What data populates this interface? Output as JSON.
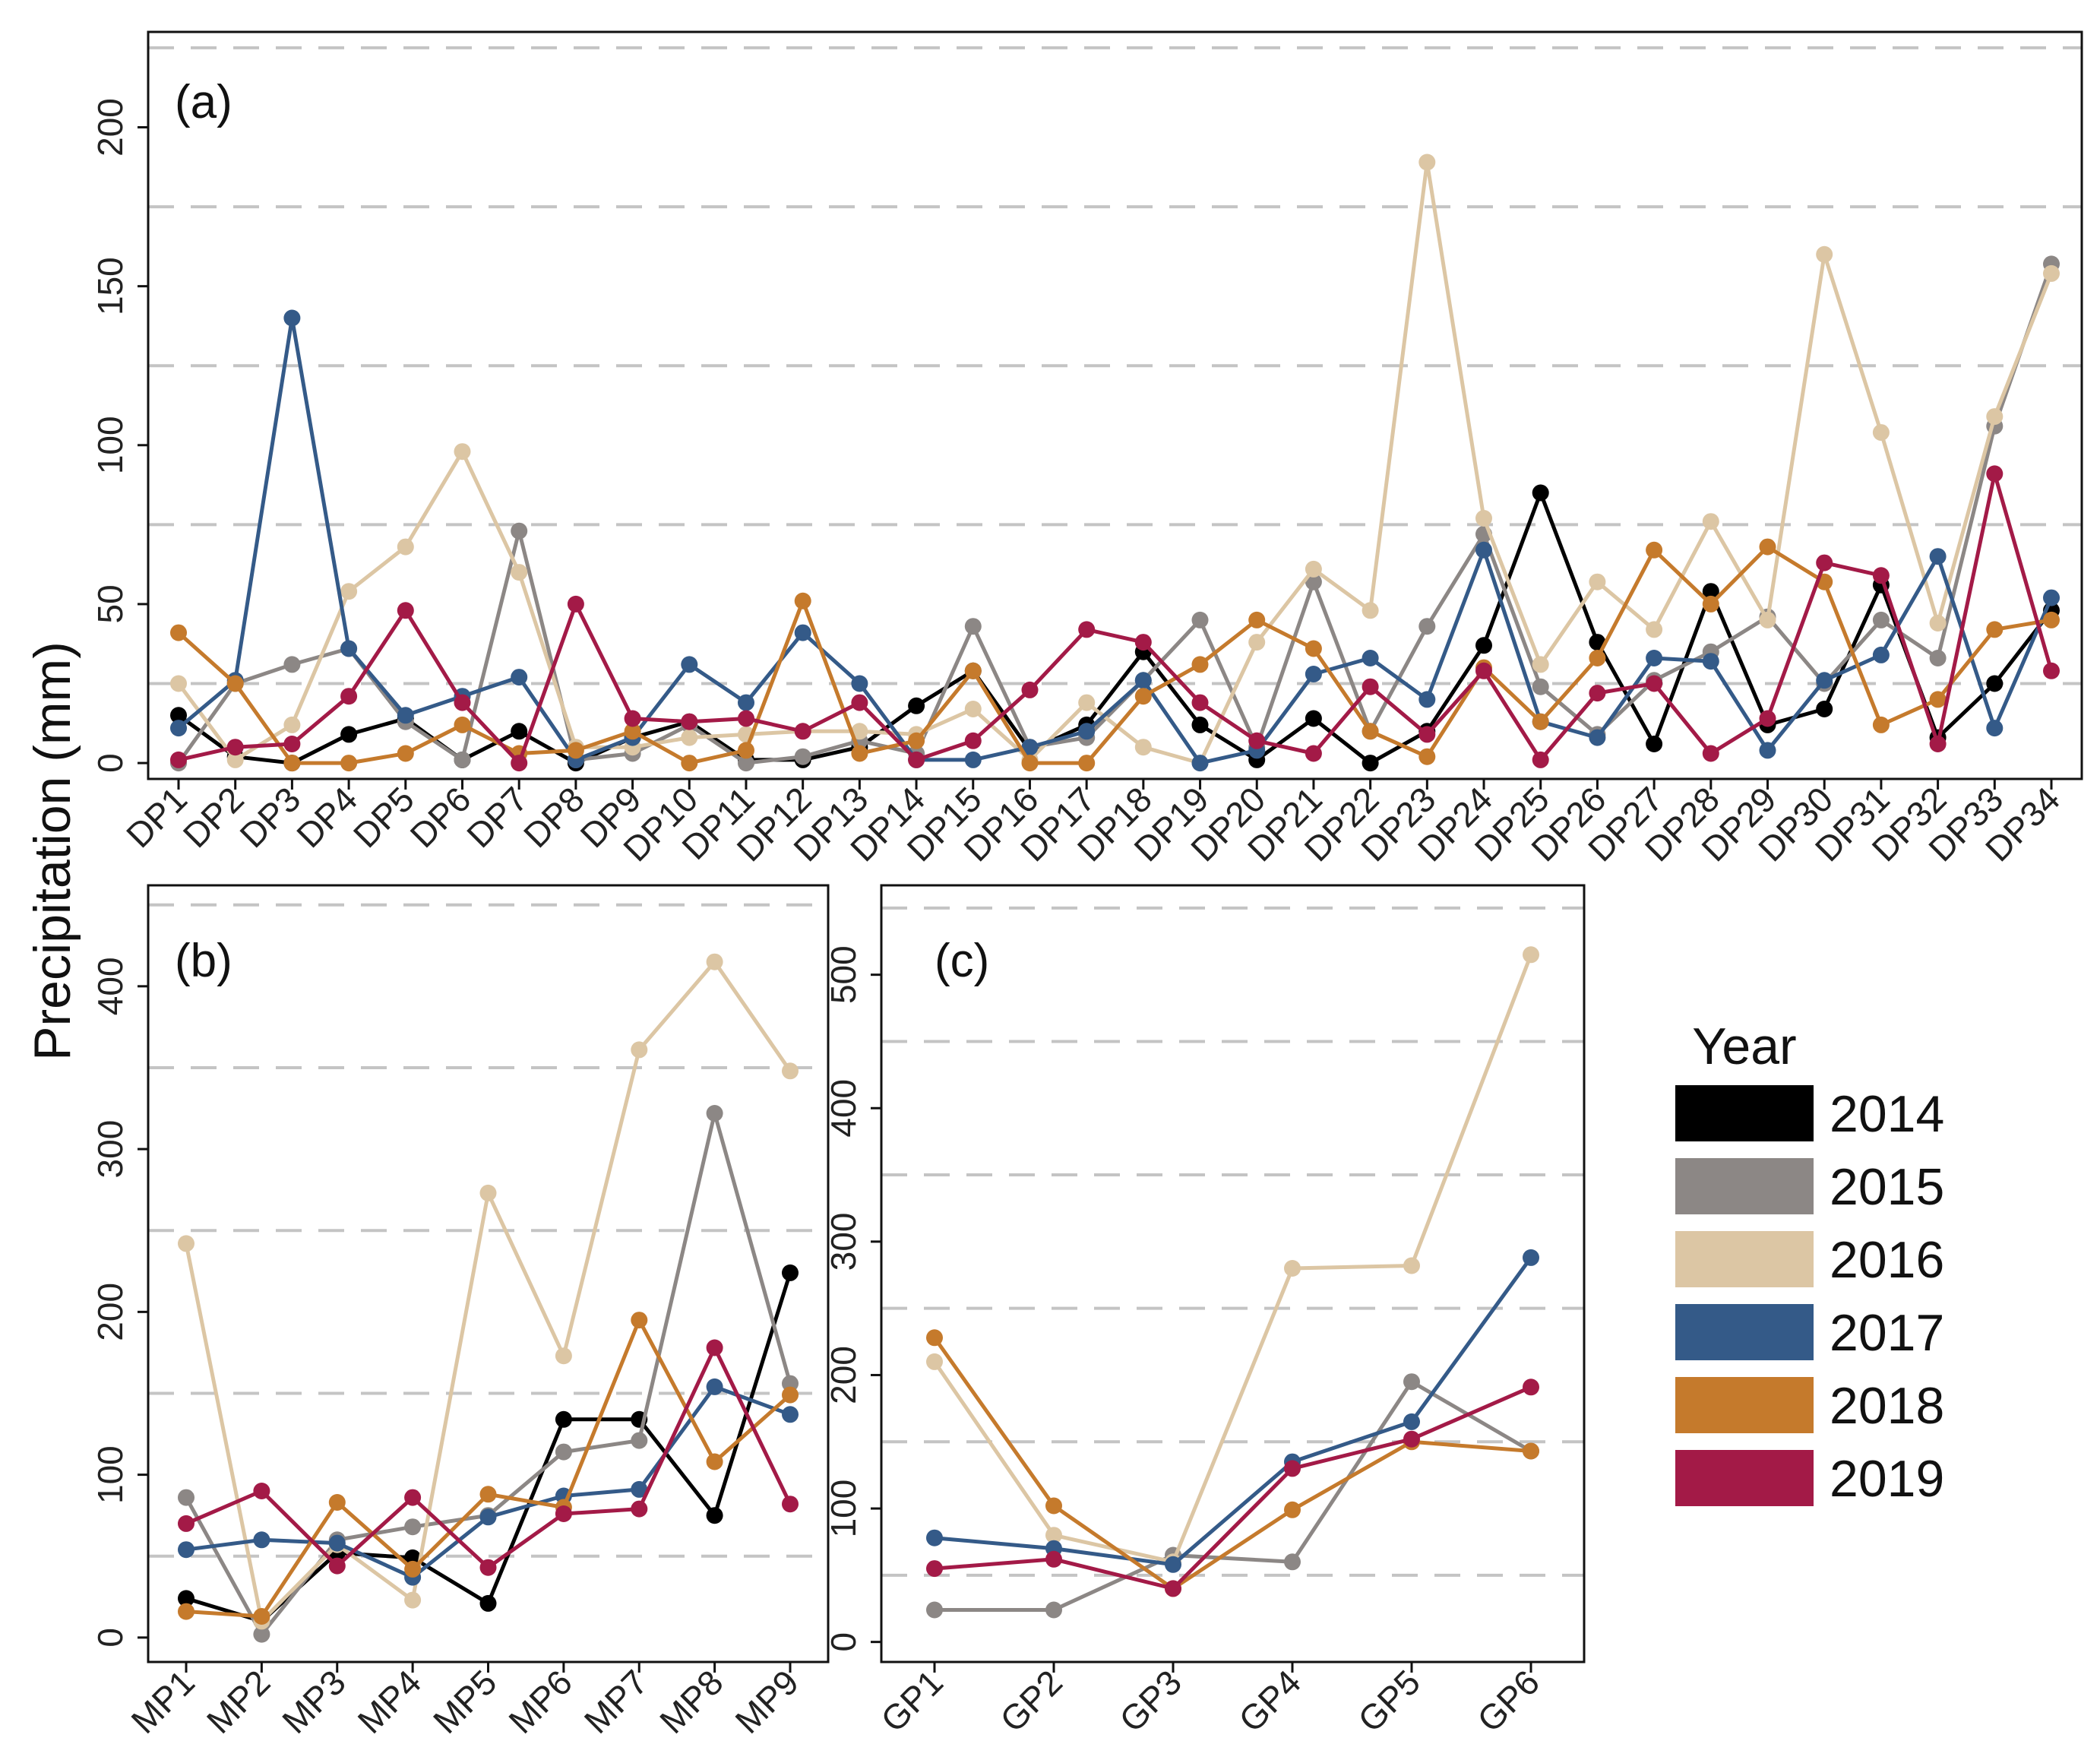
{
  "ylabel": "Precipitation (mm)",
  "legend": {
    "title": "Year",
    "entries": [
      {
        "label": "2014",
        "color": "#000000"
      },
      {
        "label": "2015",
        "color": "#8c8785"
      },
      {
        "label": "2016",
        "color": "#dcc6a4"
      },
      {
        "label": "2017",
        "color": "#345a88"
      },
      {
        "label": "2018",
        "color": "#c57a2c"
      },
      {
        "label": "2019",
        "color": "#a31a47"
      }
    ]
  },
  "chart_data": [
    {
      "type": "line",
      "panel_label": "(a)",
      "categories": [
        "DP1",
        "DP2",
        "DP3",
        "DP4",
        "DP5",
        "DP6",
        "DP7",
        "DP8",
        "DP9",
        "DP10",
        "DP11",
        "DP12",
        "DP13",
        "DP14",
        "DP15",
        "DP16",
        "DP17",
        "DP18",
        "DP19",
        "DP20",
        "DP21",
        "DP22",
        "DP23",
        "DP24",
        "DP25",
        "DP26",
        "DP27",
        "DP28",
        "DP29",
        "DP30",
        "DP31",
        "DP32",
        "DP33",
        "DP34"
      ],
      "ylim": [
        -5,
        230
      ],
      "yticks": [
        0,
        50,
        100,
        150,
        200
      ],
      "gridlines": [
        25,
        75,
        125,
        175,
        225
      ],
      "series": [
        {
          "name": "2014",
          "values": [
            15,
            2,
            0,
            9,
            14,
            1,
            10,
            0,
            8,
            13,
            1,
            1,
            5,
            18,
            29,
            4,
            12,
            35,
            12,
            1,
            14,
            0,
            10,
            37,
            85,
            38,
            6,
            54,
            12,
            17,
            56,
            8,
            25,
            48
          ]
        },
        {
          "name": "2015",
          "values": [
            0,
            25,
            31,
            36,
            13,
            1,
            73,
            1,
            3,
            12,
            0,
            2,
            7,
            3,
            43,
            5,
            8,
            26,
            45,
            5,
            57,
            10,
            43,
            72,
            24,
            9,
            26,
            35,
            46,
            25,
            45,
            33,
            106,
            157
          ]
        },
        {
          "name": "2016",
          "values": [
            25,
            1,
            12,
            54,
            68,
            98,
            60,
            5,
            5,
            8,
            9,
            10,
            10,
            9,
            17,
            1,
            19,
            5,
            0,
            38,
            61,
            48,
            189,
            77,
            31,
            57,
            42,
            76,
            45,
            160,
            104,
            44,
            109,
            154
          ]
        },
        {
          "name": "2017",
          "values": [
            11,
            26,
            140,
            36,
            15,
            21,
            27,
            1,
            8,
            31,
            19,
            41,
            25,
            1,
            1,
            5,
            10,
            26,
            0,
            4,
            28,
            33,
            20,
            67,
            13,
            8,
            33,
            32,
            4,
            26,
            34,
            65,
            11,
            52
          ]
        },
        {
          "name": "2018",
          "values": [
            41,
            25,
            0,
            0,
            3,
            12,
            3,
            4,
            10,
            0,
            4,
            51,
            3,
            7,
            29,
            0,
            0,
            21,
            31,
            45,
            36,
            10,
            2,
            30,
            13,
            33,
            67,
            50,
            68,
            57,
            12,
            20,
            42,
            45
          ]
        },
        {
          "name": "2019",
          "values": [
            1,
            5,
            6,
            21,
            48,
            19,
            0,
            50,
            14,
            13,
            14,
            10,
            19,
            1,
            7,
            23,
            42,
            38,
            19,
            7,
            3,
            24,
            9,
            29,
            1,
            22,
            25,
            3,
            14,
            63,
            59,
            6,
            91,
            29
          ]
        }
      ]
    },
    {
      "type": "line",
      "panel_label": "(b)",
      "categories": [
        "MP1",
        "MP2",
        "MP3",
        "MP4",
        "MP5",
        "MP6",
        "MP7",
        "MP8",
        "MP9"
      ],
      "ylim": [
        -15,
        462
      ],
      "yticks": [
        0,
        100,
        200,
        300,
        400
      ],
      "gridlines": [
        50,
        150,
        250,
        350,
        450
      ],
      "series": [
        {
          "name": "2014",
          "values": [
            24,
            10,
            52,
            49,
            21,
            134,
            134,
            75,
            224
          ]
        },
        {
          "name": "2015",
          "values": [
            86,
            2,
            60,
            68,
            75,
            114,
            121,
            322,
            156
          ]
        },
        {
          "name": "2016",
          "values": [
            242,
            10,
            57,
            23,
            273,
            173,
            361,
            415,
            348
          ]
        },
        {
          "name": "2017",
          "values": [
            54,
            60,
            58,
            37,
            74,
            87,
            91,
            154,
            137
          ]
        },
        {
          "name": "2018",
          "values": [
            16,
            13,
            83,
            42,
            88,
            80,
            195,
            108,
            149
          ]
        },
        {
          "name": "2019",
          "values": [
            70,
            90,
            44,
            86,
            43,
            76,
            79,
            178,
            82
          ]
        }
      ]
    },
    {
      "type": "line",
      "panel_label": "(c)",
      "categories": [
        "GP1",
        "GP2",
        "GP3",
        "GP4",
        "GP5",
        "GP6"
      ],
      "ylim": [
        -15,
        567
      ],
      "yticks": [
        0,
        100,
        200,
        300,
        400,
        500
      ],
      "gridlines": [
        50,
        150,
        250,
        350,
        450,
        550
      ],
      "series": [
        {
          "name": "2015",
          "values": [
            24,
            24,
            65,
            60,
            195,
            143
          ]
        },
        {
          "name": "2016",
          "values": [
            210,
            80,
            60,
            280,
            282,
            515
          ]
        },
        {
          "name": "2017",
          "values": [
            78,
            70,
            58,
            135,
            165,
            288
          ]
        },
        {
          "name": "2018",
          "values": [
            228,
            102,
            40,
            99,
            150,
            143
          ]
        },
        {
          "name": "2019",
          "values": [
            55,
            62,
            40,
            130,
            152,
            191
          ]
        }
      ]
    }
  ]
}
